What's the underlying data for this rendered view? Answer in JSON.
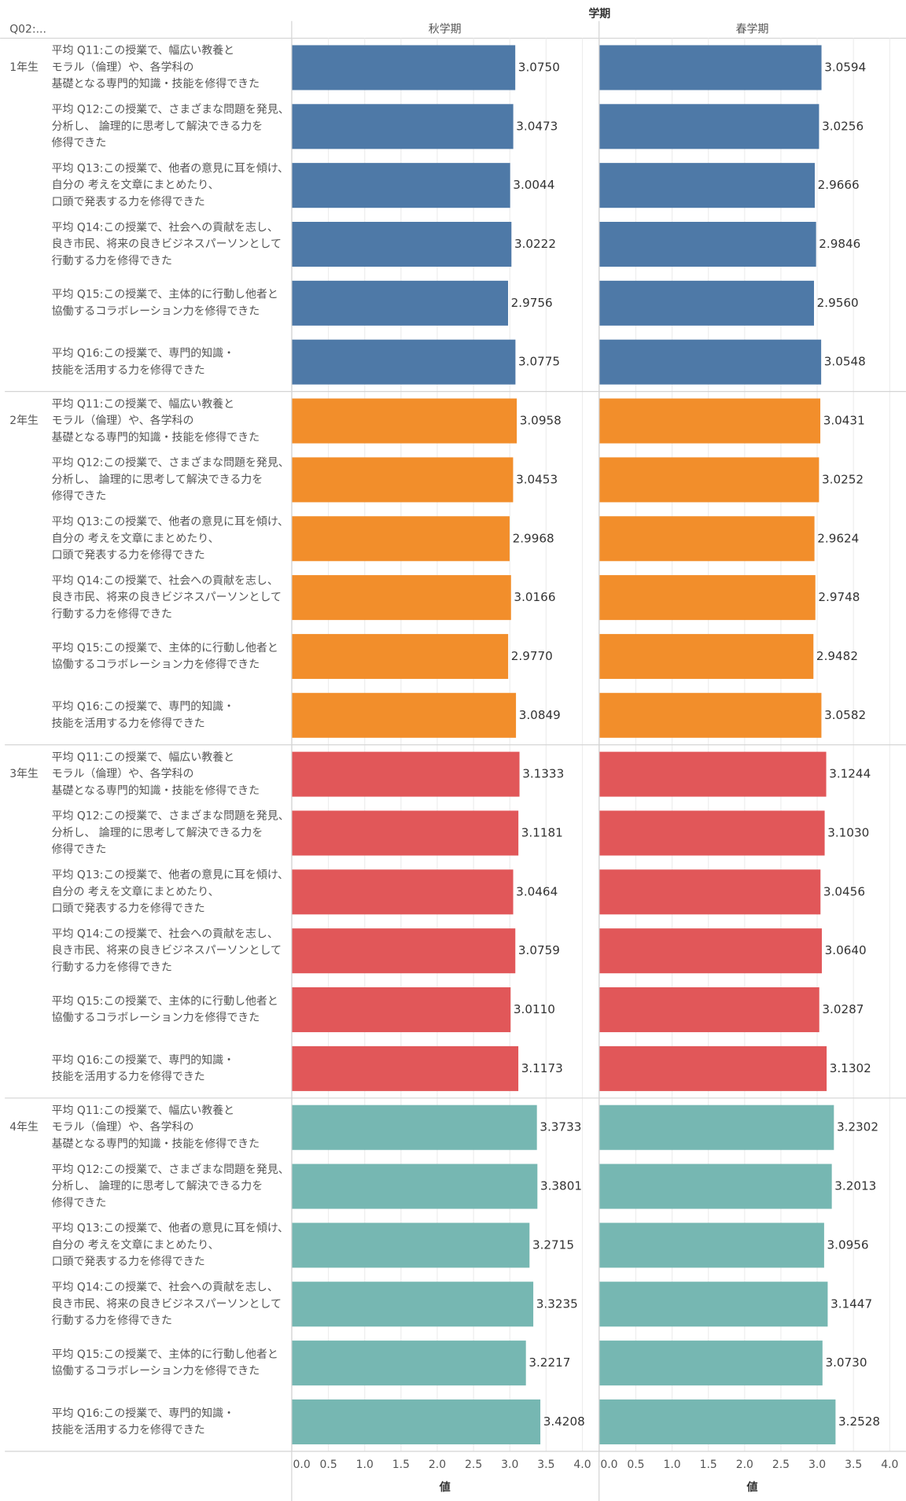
{
  "chart_data": {
    "type": "bar",
    "title": "学期",
    "row_header": "Q02:...",
    "panels": [
      "秋学期",
      "春学期"
    ],
    "categories": [
      [
        "平均 Q11:この授業で、幅広い教養と",
        "モラル（倫理）や、各学科の",
        "基礎となる専門的知識・技能を修得できた"
      ],
      [
        "平均 Q12:この授業で、さまざまな問題を発見、",
        "分析し、 論理的に思考して解決できる力を",
        "修得できた"
      ],
      [
        "平均 Q13:この授業で、他者の意見に耳を傾け、",
        "自分の 考えを文章にまとめたり、",
        "口頭で発表する力を修得できた"
      ],
      [
        "平均 Q14:この授業で、社会への貢献を志し、",
        "良き市民、将来の良きビジネスパーソンとして",
        "行動する力を修得できた"
      ],
      [
        "平均 Q15:この授業で、主体的に行動し他者と",
        "協働するコラボレーション力を修得できた"
      ],
      [
        "平均 Q16:この授業で、専門的知識・",
        "技能を活用する力を修得できた"
      ]
    ],
    "series": [
      {
        "name": "1年生",
        "color": "#4e79a7",
        "values": [
          [
            3.075,
            3.0473,
            3.0044,
            3.0222,
            2.9756,
            3.0775
          ],
          [
            3.0594,
            3.0256,
            2.9666,
            2.9846,
            2.956,
            3.0548
          ]
        ],
        "value_labels": [
          [
            "3.0750",
            "3.0473",
            "3.0044",
            "3.0222",
            "2.9756",
            "3.0775"
          ],
          [
            "3.0594",
            "3.0256",
            "2.9666",
            "2.9846",
            "2.9560",
            "3.0548"
          ]
        ]
      },
      {
        "name": "2年生",
        "color": "#f28e2b",
        "values": [
          [
            3.0958,
            3.0453,
            2.9968,
            3.0166,
            2.977,
            3.0849
          ],
          [
            3.0431,
            3.0252,
            2.9624,
            2.9748,
            2.9482,
            3.0582
          ]
        ],
        "value_labels": [
          [
            "3.0958",
            "3.0453",
            "2.9968",
            "3.0166",
            "2.9770",
            "3.0849"
          ],
          [
            "3.0431",
            "3.0252",
            "2.9624",
            "2.9748",
            "2.9482",
            "3.0582"
          ]
        ]
      },
      {
        "name": "3年生",
        "color": "#e15759",
        "values": [
          [
            3.1333,
            3.1181,
            3.0464,
            3.0759,
            3.011,
            3.1173
          ],
          [
            3.1244,
            3.103,
            3.0456,
            3.064,
            3.0287,
            3.1302
          ]
        ],
        "value_labels": [
          [
            "3.1333",
            "3.1181",
            "3.0464",
            "3.0759",
            "3.0110",
            "3.1173"
          ],
          [
            "3.1244",
            "3.1030",
            "3.0456",
            "3.0640",
            "3.0287",
            "3.1302"
          ]
        ]
      },
      {
        "name": "4年生",
        "color": "#76b7b2",
        "values": [
          [
            3.3733,
            3.3801,
            3.2715,
            3.3235,
            3.2217,
            3.4208
          ],
          [
            3.2302,
            3.2013,
            3.0956,
            3.1447,
            3.073,
            3.2528
          ]
        ],
        "value_labels": [
          [
            "3.3733",
            "3.3801",
            "3.2715",
            "3.3235",
            "3.2217",
            "3.4208"
          ],
          [
            "3.2302",
            "3.2013",
            "3.0956",
            "3.1447",
            "3.0730",
            "3.2528"
          ]
        ]
      }
    ],
    "xlim": [
      0,
      4.21
    ],
    "xticks": [
      {
        "value": 0,
        "label": "0.0"
      },
      0.5,
      {
        "value": 1,
        "label": "1.0"
      },
      1.5,
      {
        "value": 2,
        "label": "2.0"
      },
      2.5,
      {
        "value": 3,
        "label": "3.0"
      },
      3.5,
      {
        "value": 4,
        "label": "4.0"
      }
    ],
    "xlabel": "値",
    "grid": true
  }
}
